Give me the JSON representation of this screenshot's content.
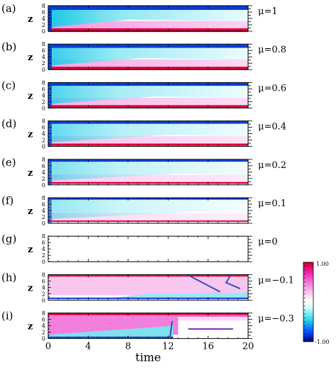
{
  "chart_data": {
    "type": "heatmap",
    "xlabel": "time",
    "ylabel": "z",
    "xlim": [
      0,
      20
    ],
    "ylim": [
      0,
      8
    ],
    "x_ticks": [
      "0",
      "4",
      "8",
      "12",
      "16",
      "20"
    ],
    "y_ticks": [
      "0",
      "2",
      "4",
      "6",
      "8"
    ],
    "colorbar": {
      "min": -1.0,
      "max": 1.0,
      "max_label": "1.00",
      "min_label": "-1.00",
      "stops": [
        {
          "v": -1.0,
          "color": "#00007a"
        },
        {
          "v": -0.75,
          "color": "#0050ff"
        },
        {
          "v": -0.45,
          "color": "#30d8e8"
        },
        {
          "v": -0.15,
          "color": "#d8fbfc"
        },
        {
          "v": 0.0,
          "color": "#ffffff"
        },
        {
          "v": 0.15,
          "color": "#fde0f5"
        },
        {
          "v": 0.45,
          "color": "#f58ae0"
        },
        {
          "v": 0.75,
          "color": "#ee1faa"
        },
        {
          "v": 1.0,
          "color": "#c8001e"
        }
      ]
    },
    "panels": [
      {
        "tag": "(a)",
        "mu": "μ=1"
      },
      {
        "tag": "(b)",
        "mu": "μ=0.8"
      },
      {
        "tag": "(c)",
        "mu": "μ=0.6"
      },
      {
        "tag": "(d)",
        "mu": "μ=0.4"
      },
      {
        "tag": "(e)",
        "mu": "μ=0.2"
      },
      {
        "tag": "(f)",
        "mu": "μ=0.1"
      },
      {
        "tag": "(g)",
        "mu": "μ=0"
      },
      {
        "tag": "(h)",
        "mu": "μ=−0.1"
      },
      {
        "tag": "(i)",
        "mu": "μ=−0.3"
      }
    ]
  }
}
